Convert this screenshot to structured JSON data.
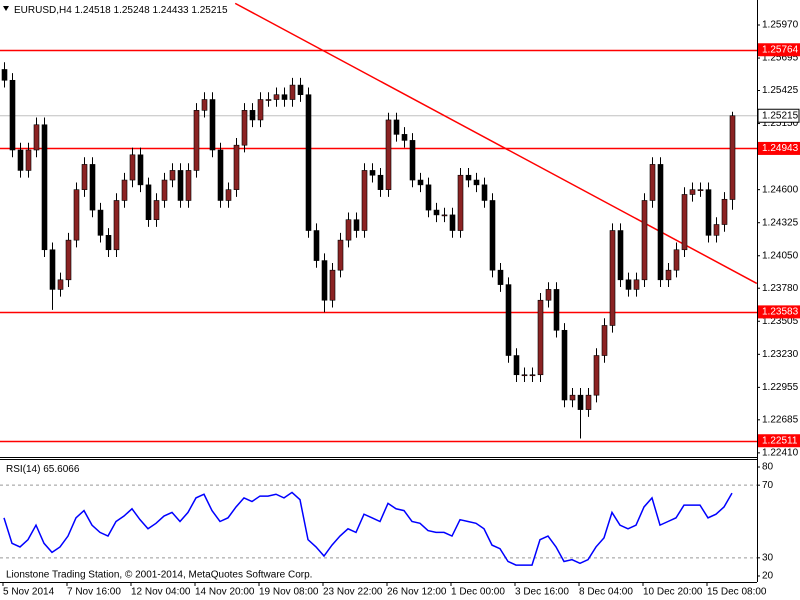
{
  "chart_data": [
    {
      "type": "candlestick",
      "symbol": "EURUSD,H4",
      "categories": [
        "5 Nov 2014",
        null,
        null,
        null,
        null,
        null,
        null,
        null,
        "7 Nov 16:00",
        null,
        null,
        null,
        null,
        null,
        null,
        null,
        "12 Nov 04:00",
        null,
        null,
        null,
        null,
        null,
        null,
        null,
        "14 Nov 20:00",
        null,
        null,
        null,
        null,
        null,
        null,
        null,
        "19 Nov 08:00",
        null,
        null,
        null,
        null,
        null,
        null,
        null,
        "23 Nov 22:00",
        null,
        null,
        null,
        null,
        null,
        null,
        null,
        "26 Nov 12:00",
        null,
        null,
        null,
        null,
        null,
        null,
        null,
        "1 Dec 00:00",
        null,
        null,
        null,
        null,
        null,
        null,
        null,
        "3 Dec 16:00",
        null,
        null,
        null,
        null,
        null,
        null,
        null,
        "8 Dec 04:00",
        null,
        null,
        null,
        null,
        null,
        null,
        null,
        "10 Dec 20:00",
        null,
        null,
        null,
        null,
        null,
        null,
        null,
        "15 Dec 08:00",
        null,
        null,
        null
      ],
      "open": [
        1.256,
        1.2551,
        1.2493,
        1.2476,
        1.2493,
        1.2514,
        1.241,
        1.2377,
        1.2385,
        1.2418,
        1.246,
        1.2481,
        1.2443,
        1.2422,
        1.241,
        1.2451,
        1.2468,
        1.2489,
        1.2464,
        1.2435,
        1.2451,
        1.2468,
        1.2476,
        1.2451,
        1.2476,
        1.2526,
        1.2535,
        1.2493,
        1.2451,
        1.246,
        1.2497,
        1.2526,
        1.2518,
        1.2535,
        1.2535,
        1.2539,
        1.2535,
        1.2547,
        1.2539,
        1.2426,
        1.2401,
        1.2368,
        1.2393,
        1.2418,
        1.2435,
        1.2426,
        1.2476,
        1.2472,
        1.246,
        1.2518,
        1.2506,
        1.2501,
        1.2468,
        1.2464,
        1.2443,
        1.2439,
        1.2439,
        1.2426,
        1.2472,
        1.2468,
        1.2464,
        1.2451,
        1.2393,
        1.2381,
        1.2322,
        1.2306,
        1.2306,
        1.2306,
        1.2368,
        1.2377,
        1.2343,
        1.2285,
        1.2289,
        1.2277,
        1.2289,
        1.2322,
        1.2347,
        1.2426,
        1.2385,
        1.2377,
        1.2385,
        1.2451,
        1.2481,
        1.2385,
        1.2393,
        1.241,
        1.2456,
        1.246,
        1.246,
        1.2422,
        1.2431,
        1.24518
      ],
      "high": [
        1.2566,
        1.2557,
        1.2499,
        1.2499,
        1.252,
        1.252,
        1.2416,
        1.2391,
        1.2424,
        1.2466,
        1.2487,
        1.2487,
        1.2449,
        1.2428,
        1.2457,
        1.2474,
        1.2495,
        1.2495,
        1.247,
        1.2457,
        1.2474,
        1.2482,
        1.2482,
        1.2482,
        1.2532,
        1.2541,
        1.2541,
        1.2499,
        1.2466,
        1.2503,
        1.2532,
        1.2532,
        1.2541,
        1.2541,
        1.2545,
        1.2545,
        1.2553,
        1.2553,
        1.2545,
        1.2432,
        1.2407,
        1.2399,
        1.2424,
        1.2441,
        1.2441,
        1.2482,
        1.2482,
        1.2478,
        1.2524,
        1.2524,
        1.2512,
        1.2507,
        1.2474,
        1.247,
        1.2449,
        1.2445,
        1.2445,
        1.2478,
        1.2478,
        1.2474,
        1.247,
        1.2457,
        1.2399,
        1.2387,
        1.2328,
        1.2312,
        1.2312,
        1.2374,
        1.2383,
        1.2383,
        1.2349,
        1.2295,
        1.2295,
        1.2295,
        1.2328,
        1.2353,
        1.2432,
        1.2432,
        1.2391,
        1.2391,
        1.2457,
        1.2487,
        1.2487,
        1.2399,
        1.2416,
        1.2462,
        1.2466,
        1.2466,
        1.2466,
        1.2437,
        1.2458,
        1.25248
      ],
      "low": [
        1.2545,
        1.2487,
        1.247,
        1.247,
        1.2487,
        1.2404,
        1.236,
        1.2371,
        1.2379,
        1.2412,
        1.2454,
        1.2437,
        1.2416,
        1.2404,
        1.2404,
        1.2445,
        1.2462,
        1.2458,
        1.2429,
        1.2429,
        1.2445,
        1.2462,
        1.2445,
        1.2445,
        1.247,
        1.252,
        1.2487,
        1.2445,
        1.2445,
        1.2454,
        1.2491,
        1.2512,
        1.2512,
        1.2529,
        1.2529,
        1.2529,
        1.2529,
        1.2533,
        1.242,
        1.2395,
        1.2358,
        1.2362,
        1.2387,
        1.2412,
        1.242,
        1.242,
        1.2466,
        1.2454,
        1.2454,
        1.25,
        1.2495,
        1.2462,
        1.2458,
        1.2437,
        1.2433,
        1.2433,
        1.242,
        1.242,
        1.2462,
        1.2458,
        1.2445,
        1.2387,
        1.2375,
        1.2316,
        1.23,
        1.23,
        1.23,
        1.23,
        1.2362,
        1.2337,
        1.2279,
        1.2279,
        1.2253,
        1.2271,
        1.2283,
        1.2316,
        1.2341,
        1.2379,
        1.2371,
        1.2371,
        1.2379,
        1.2445,
        1.2379,
        1.2379,
        1.2387,
        1.2404,
        1.245,
        1.2454,
        1.2416,
        1.2416,
        1.2425,
        1.24433
      ],
      "close": [
        1.2551,
        1.2493,
        1.2476,
        1.2493,
        1.2514,
        1.241,
        1.2377,
        1.2385,
        1.2418,
        1.246,
        1.2481,
        1.2443,
        1.2422,
        1.241,
        1.2451,
        1.2468,
        1.2489,
        1.2464,
        1.2435,
        1.2451,
        1.2468,
        1.2476,
        1.2451,
        1.2476,
        1.2526,
        1.2535,
        1.2493,
        1.2451,
        1.246,
        1.2497,
        1.2526,
        1.2518,
        1.2535,
        1.2535,
        1.2539,
        1.2535,
        1.2547,
        1.2539,
        1.2426,
        1.2401,
        1.2368,
        1.2393,
        1.2418,
        1.2435,
        1.2426,
        1.2476,
        1.2472,
        1.246,
        1.2518,
        1.2506,
        1.2501,
        1.2468,
        1.2464,
        1.2443,
        1.2439,
        1.2439,
        1.2426,
        1.2472,
        1.2468,
        1.2464,
        1.2451,
        1.2393,
        1.2381,
        1.2322,
        1.2306,
        1.2306,
        1.2306,
        1.2368,
        1.2377,
        1.2343,
        1.2285,
        1.2289,
        1.2277,
        1.2289,
        1.2322,
        1.2347,
        1.2426,
        1.2385,
        1.2377,
        1.2385,
        1.2451,
        1.2481,
        1.2385,
        1.2393,
        1.241,
        1.2456,
        1.246,
        1.246,
        1.2422,
        1.2431,
        1.2452,
        1.25215
      ],
      "up_color": "#8b2323",
      "down_color": "#000000",
      "ylim": [
        1.22384,
        1.26178
      ],
      "yticks": [
        {
          "value": 1.2597,
          "label": "1.25970"
        },
        1.25695,
        1.25425,
        {
          "value": 1.2515,
          "label": "1.25150"
        },
        {
          "value": 1.246,
          "label": "1.24600"
        },
        1.24325,
        {
          "value": 1.2405,
          "label": "1.24050"
        },
        {
          "value": 1.2378,
          "label": "1.23780"
        },
        1.23505,
        {
          "value": 1.2323,
          "label": "1.23230"
        },
        1.22955,
        1.22685,
        {
          "value": 1.2241,
          "label": "1.22410"
        }
      ],
      "levels": [
        1.25764,
        1.24943,
        1.23583,
        1.22511
      ],
      "level_color": "#ff0000",
      "trendline": {
        "x": [
          28.9,
          94.1
        ],
        "y": [
          1.2615,
          1.2382
        ],
        "color": "#ff0000"
      },
      "price_line_color": "#c0c0c0"
    },
    {
      "type": "line",
      "title": "RSI(14)",
      "color": "#0000ff",
      "values": [
        52,
        38,
        36,
        40,
        48,
        38,
        33,
        36,
        42,
        52,
        56,
        48,
        44,
        42,
        50,
        53,
        57,
        51,
        46,
        49,
        53,
        55,
        50,
        55,
        63,
        65,
        56,
        50,
        52,
        58,
        63,
        61,
        64,
        64,
        65,
        63,
        66,
        62,
        40,
        36,
        31,
        37,
        42,
        46,
        44,
        54,
        52,
        50,
        60,
        57,
        56,
        50,
        49,
        45,
        44,
        44,
        42,
        51,
        50,
        49,
        46,
        37,
        35,
        28,
        26,
        26,
        26,
        40,
        42,
        36,
        28,
        29,
        27,
        29,
        36,
        41,
        55,
        48,
        46,
        48,
        58,
        63,
        48,
        50,
        52,
        59,
        59,
        59,
        52,
        54,
        58,
        65.6066
      ],
      "ylim": [
        16.7,
        83.85
      ],
      "yticks": [
        80,
        70,
        30,
        20
      ],
      "levels": [
        70,
        30
      ]
    }
  ],
  "copyright": "Lionstone Trading Station, © 2001-2014, MetaQuotes Software Corp."
}
